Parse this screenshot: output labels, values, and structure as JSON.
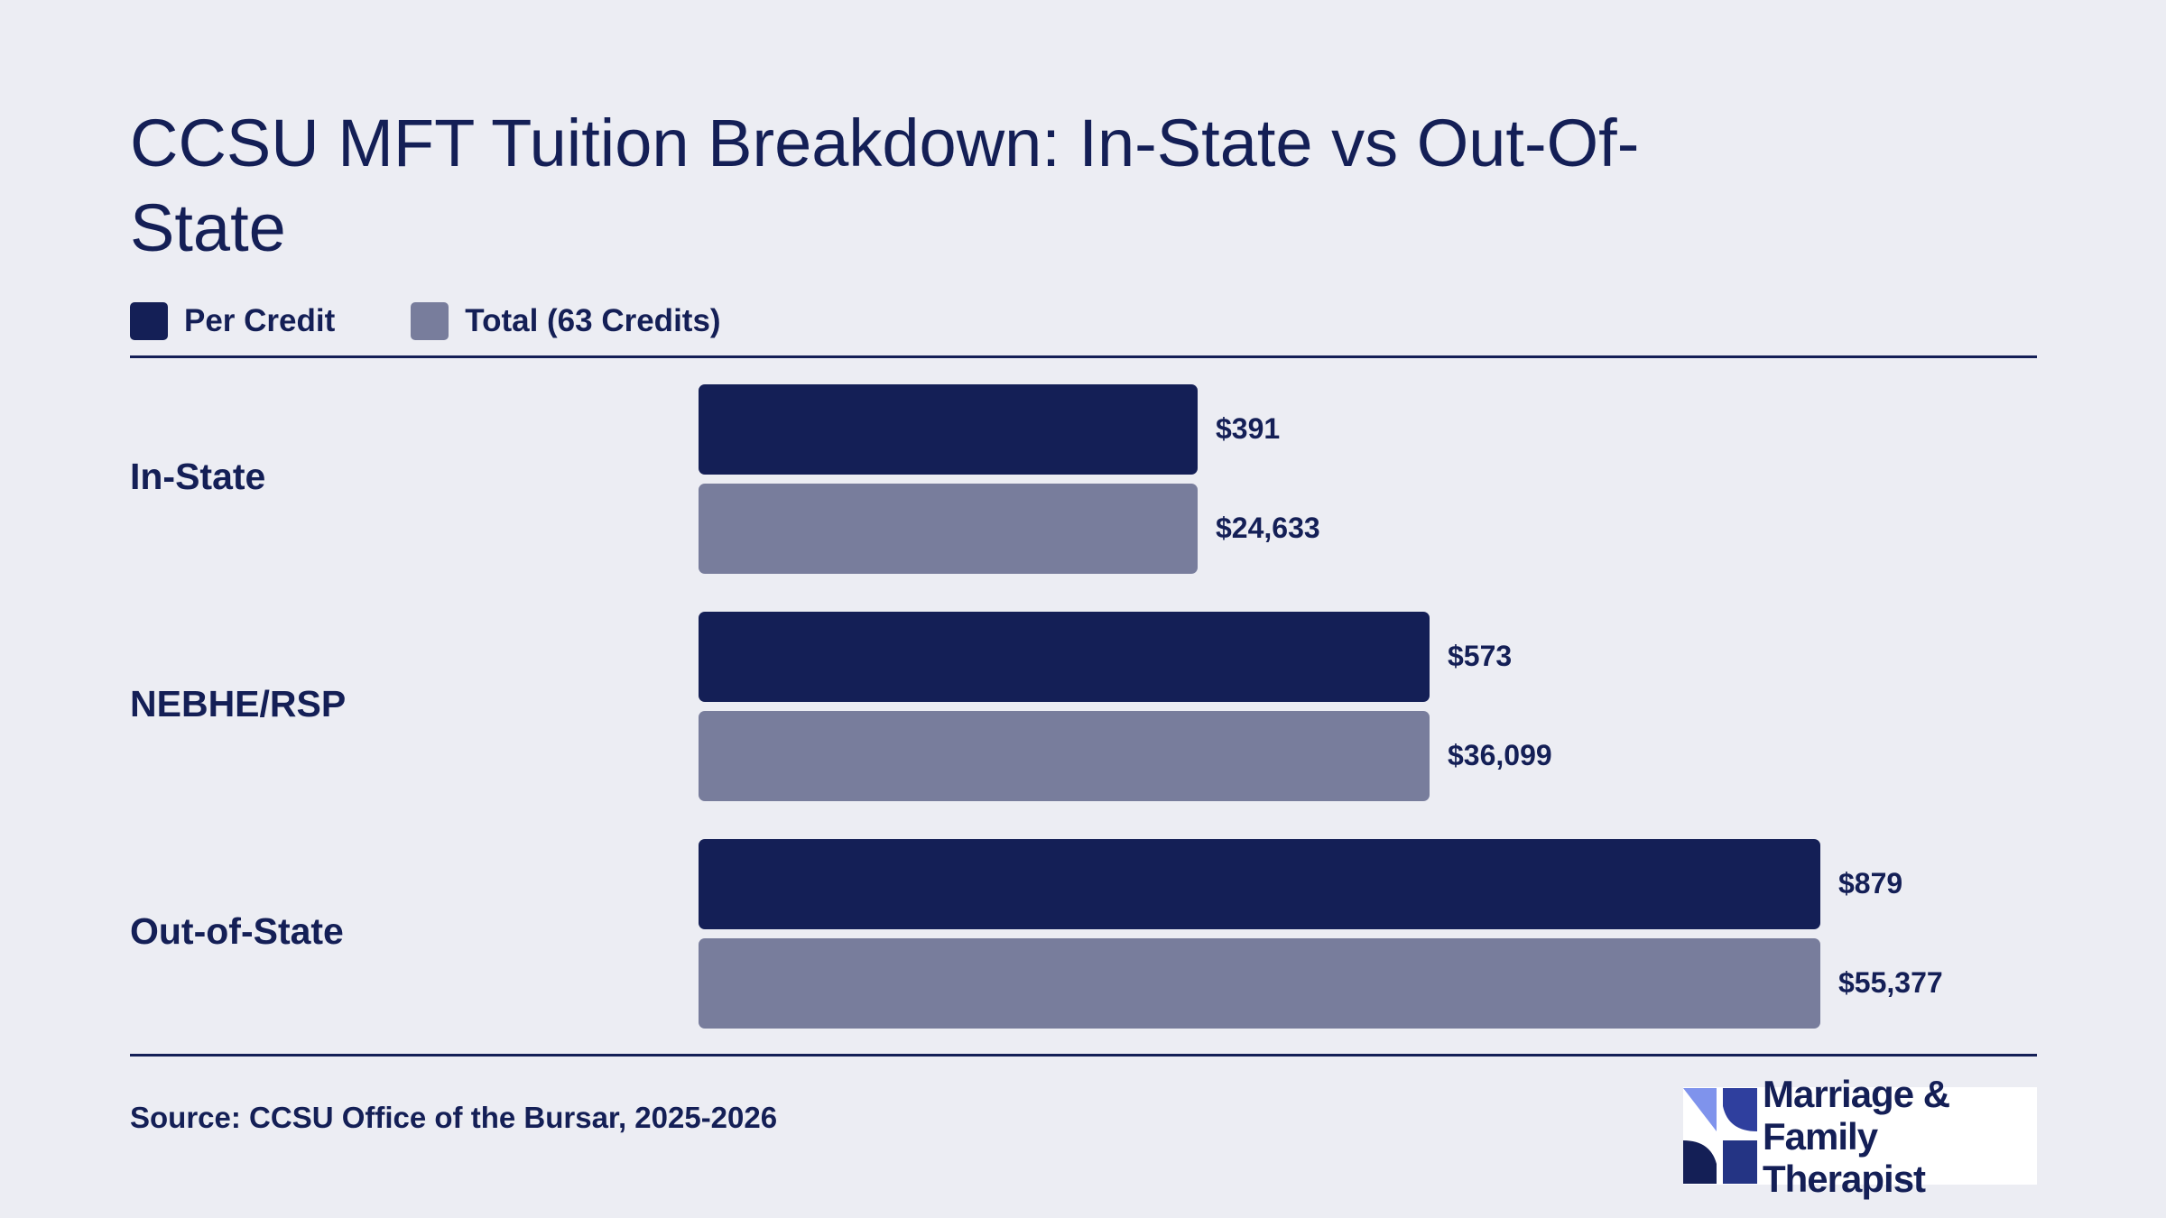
{
  "chart_data": {
    "type": "bar",
    "orientation": "horizontal",
    "title": "CCSU MFT Tuition Breakdown: In-State vs Out-Of-State",
    "categories": [
      "In-State",
      "NEBHE/RSP",
      "Out-of-State"
    ],
    "series": [
      {
        "name": "Per Credit",
        "values": [
          391,
          573,
          879
        ],
        "labels": [
          "$391",
          "$573",
          "$879"
        ],
        "color": "#141f56"
      },
      {
        "name": "Total (63 Credits)",
        "values": [
          24633,
          36099,
          55377
        ],
        "labels": [
          "$24,633",
          "$36,099",
          "$55,377"
        ],
        "color": "#787d9c"
      }
    ],
    "legend_position": "top-left",
    "grid": false,
    "source": "Source: CCSU Office of the Bursar, 2025-2026"
  },
  "logo": {
    "text_line1": "Marriage & Family",
    "text_line2": "Therapist"
  },
  "colors": {
    "background": "#ecedf3",
    "text": "#141f56",
    "per_credit": "#141f56",
    "total": "#787d9c"
  }
}
